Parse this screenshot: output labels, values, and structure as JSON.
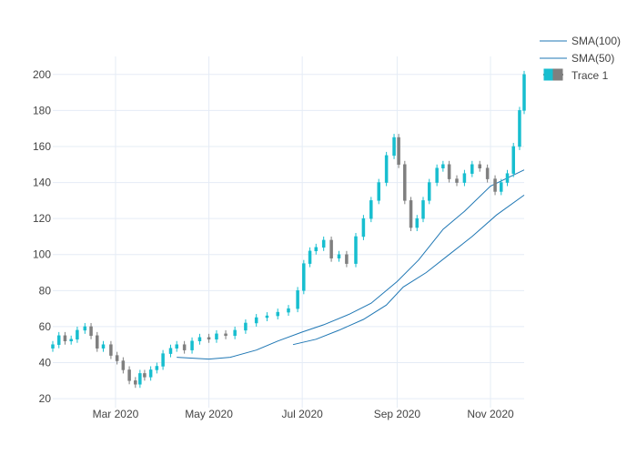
{
  "chart_data": {
    "type": "candlestick",
    "title": "",
    "xlabel": "",
    "ylabel": "",
    "x_range": [
      "2020-01-20",
      "2020-11-23"
    ],
    "ylim": [
      15,
      210
    ],
    "y_ticks": [
      20,
      40,
      60,
      80,
      100,
      120,
      140,
      160,
      180,
      200
    ],
    "y_tick_labels": [
      "20",
      "40",
      "60",
      "80",
      "100",
      "120",
      "140",
      "160",
      "180",
      "200"
    ],
    "x_ticks": [
      "2020-03-01",
      "2020-05-01",
      "2020-07-01",
      "2020-09-01",
      "2020-11-01"
    ],
    "x_tick_labels": [
      "Mar 2020",
      "May 2020",
      "Jul 2020",
      "Sep 2020",
      "Nov 2020"
    ],
    "grid": true,
    "legend_position": "top-right",
    "colors": {
      "increasing": "#17becf",
      "decreasing": "#7f7f7f",
      "sma100": "#1f77b4",
      "sma50": "#1f77b4",
      "grid": "#e5ecf6",
      "axis_text": "#444444"
    },
    "legend": [
      {
        "name": "SMA(100)",
        "kind": "line"
      },
      {
        "name": "SMA(50)",
        "kind": "line"
      },
      {
        "name": "Trace 1",
        "kind": "candle"
      }
    ],
    "close_series": {
      "dates": [
        "2020-01-20",
        "2020-01-24",
        "2020-01-28",
        "2020-02-01",
        "2020-02-05",
        "2020-02-10",
        "2020-02-14",
        "2020-02-18",
        "2020-02-22",
        "2020-02-27",
        "2020-03-02",
        "2020-03-06",
        "2020-03-10",
        "2020-03-14",
        "2020-03-17",
        "2020-03-20",
        "2020-03-24",
        "2020-03-28",
        "2020-04-01",
        "2020-04-06",
        "2020-04-10",
        "2020-04-15",
        "2020-04-20",
        "2020-04-25",
        "2020-05-01",
        "2020-05-06",
        "2020-05-12",
        "2020-05-18",
        "2020-05-25",
        "2020-06-01",
        "2020-06-08",
        "2020-06-15",
        "2020-06-22",
        "2020-06-28",
        "2020-07-02",
        "2020-07-06",
        "2020-07-10",
        "2020-07-15",
        "2020-07-20",
        "2020-07-25",
        "2020-07-30",
        "2020-08-05",
        "2020-08-10",
        "2020-08-15",
        "2020-08-20",
        "2020-08-25",
        "2020-08-30",
        "2020-09-02",
        "2020-09-06",
        "2020-09-10",
        "2020-09-14",
        "2020-09-18",
        "2020-09-22",
        "2020-09-27",
        "2020-10-01",
        "2020-10-05",
        "2020-10-10",
        "2020-10-15",
        "2020-10-20",
        "2020-10-25",
        "2020-10-30",
        "2020-11-04",
        "2020-11-08",
        "2020-11-12",
        "2020-11-16",
        "2020-11-20",
        "2020-11-23"
      ],
      "close": [
        50,
        55,
        52,
        53,
        58,
        60,
        55,
        48,
        50,
        44,
        41,
        36,
        30,
        28,
        34,
        32,
        36,
        38,
        45,
        48,
        50,
        47,
        52,
        54,
        53,
        56,
        55,
        58,
        62,
        65,
        66,
        68,
        70,
        80,
        95,
        102,
        104,
        108,
        98,
        100,
        95,
        110,
        120,
        130,
        140,
        155,
        165,
        150,
        130,
        115,
        120,
        130,
        140,
        148,
        150,
        142,
        140,
        145,
        150,
        148,
        142,
        135,
        140,
        145,
        160,
        180,
        200
      ]
    },
    "sma100": {
      "dates": [
        "2020-04-10",
        "2020-05-01",
        "2020-05-15",
        "2020-06-01",
        "2020-06-15",
        "2020-07-01",
        "2020-07-15",
        "2020-08-01",
        "2020-08-15",
        "2020-09-01",
        "2020-09-15",
        "2020-10-01",
        "2020-10-15",
        "2020-11-01",
        "2020-11-23"
      ],
      "values": [
        43,
        42,
        43,
        47,
        52,
        57,
        61,
        67,
        73,
        85,
        97,
        114,
        124,
        138,
        147
      ]
    },
    "sma50": {
      "dates": [
        "2020-06-25",
        "2020-07-10",
        "2020-07-25",
        "2020-08-10",
        "2020-08-25",
        "2020-09-05",
        "2020-09-20",
        "2020-10-05",
        "2020-10-20",
        "2020-11-05",
        "2020-11-23"
      ],
      "values": [
        50,
        53,
        58,
        64,
        72,
        82,
        90,
        100,
        110,
        122,
        133
      ]
    }
  }
}
